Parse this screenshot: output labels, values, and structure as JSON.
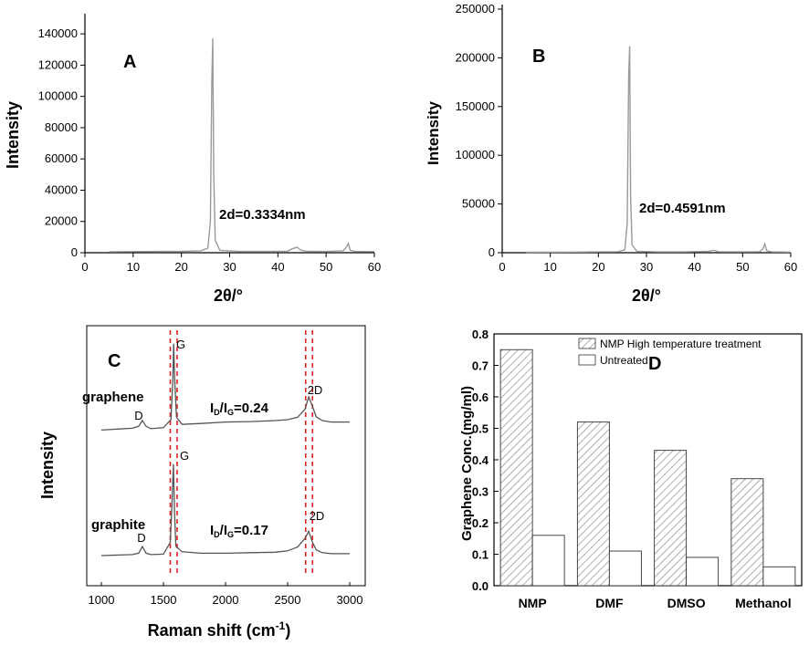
{
  "chart_data": [
    {
      "type": "line",
      "panel_label": "A",
      "xlabel": "2θ/°",
      "ylabel": "Intensity",
      "xlim": [
        0,
        60
      ],
      "ylim": [
        0,
        150000
      ],
      "x_ticks": [
        "0",
        "10",
        "20",
        "30",
        "40",
        "50",
        "60"
      ],
      "y_ticks": [
        "0",
        "20000",
        "40000",
        "60000",
        "80000",
        "100000",
        "120000",
        "140000"
      ],
      "annotation": "2d=0.3334nm",
      "series": [
        {
          "x": [
            5,
            10,
            15,
            20,
            24,
            25.5,
            26,
            26.3,
            26.5,
            26.7,
            27,
            28,
            32,
            38,
            42,
            43,
            44,
            44.6,
            45,
            46,
            50,
            53.5,
            54.2,
            54.6,
            55,
            56,
            60
          ],
          "y": [
            600,
            700,
            800,
            900,
            1200,
            3000,
            20000,
            110000,
            137000,
            50000,
            8000,
            1500,
            800,
            800,
            1000,
            2500,
            3500,
            2000,
            1500,
            900,
            800,
            1200,
            3500,
            6000,
            1500,
            800,
            700
          ]
        }
      ]
    },
    {
      "type": "line",
      "panel_label": "B",
      "xlabel": "2θ/°",
      "ylabel": "Intensity",
      "xlim": [
        0,
        60
      ],
      "ylim": [
        0,
        250000
      ],
      "x_ticks": [
        "0",
        "10",
        "20",
        "30",
        "40",
        "50",
        "60"
      ],
      "y_ticks": [
        "0",
        "50000",
        "100000",
        "150000",
        "200000",
        "250000"
      ],
      "annotation": "2d=0.4591nm",
      "series": [
        {
          "x": [
            5,
            10,
            15,
            20,
            24,
            25.5,
            26,
            26.3,
            26.5,
            26.7,
            27,
            28,
            32,
            38,
            43,
            44,
            45,
            50,
            53.5,
            54.2,
            54.6,
            55,
            56,
            60
          ],
          "y": [
            500,
            600,
            700,
            800,
            1000,
            3000,
            30000,
            180000,
            212000,
            60000,
            8000,
            1500,
            800,
            800,
            1500,
            2500,
            1000,
            800,
            1000,
            4000,
            9000,
            2000,
            800,
            700
          ]
        }
      ]
    },
    {
      "type": "line",
      "panel_label": "C",
      "xlabel": "Raman shift (cm-1)",
      "ylabel": "Intensity",
      "xlim": [
        800,
        3100
      ],
      "x_ticks": [
        "1000",
        "1500",
        "2000",
        "2500",
        "3000"
      ],
      "series": [
        {
          "name": "graphene",
          "ratio_label": "ID/IG=0.24",
          "x": [
            1000,
            1250,
            1300,
            1330,
            1360,
            1400,
            1500,
            1560,
            1575,
            1582,
            1590,
            1605,
            1650,
            1800,
            2000,
            2200,
            2400,
            2500,
            2580,
            2640,
            2670,
            2700,
            2730,
            2780,
            2850,
            3000
          ],
          "y": [
            0.28,
            0.32,
            0.36,
            0.48,
            0.36,
            0.31,
            0.33,
            0.5,
            1.3,
            2.1,
            1.4,
            0.55,
            0.4,
            0.42,
            0.45,
            0.46,
            0.48,
            0.5,
            0.55,
            0.72,
            0.98,
            0.78,
            0.56,
            0.48,
            0.45,
            0.45
          ]
        },
        {
          "name": "graphite",
          "ratio_label": "ID/IG=0.17",
          "x": [
            1000,
            1250,
            1300,
            1330,
            1360,
            1400,
            1500,
            1555,
            1570,
            1580,
            1590,
            1600,
            1650,
            1800,
            2000,
            2200,
            2400,
            2500,
            2580,
            2640,
            2670,
            2700,
            2730,
            2780,
            2850,
            3000
          ],
          "y": [
            0.02,
            0.04,
            0.07,
            0.21,
            0.07,
            0.04,
            0.05,
            0.3,
            1.2,
            1.95,
            0.9,
            0.22,
            0.1,
            0.07,
            0.07,
            0.08,
            0.09,
            0.12,
            0.2,
            0.38,
            0.53,
            0.3,
            0.14,
            0.08,
            0.06,
            0.06
          ]
        }
      ],
      "peak_labels": [
        "D",
        "G",
        "2D",
        "D",
        "G",
        "2D"
      ],
      "dashed_lines_x": [
        1555,
        1610,
        2645,
        2700
      ]
    },
    {
      "type": "bar",
      "panel_label": "D",
      "categories": [
        "NMP",
        "DMF",
        "DMSO",
        "Methanol"
      ],
      "ylabel": "Graphene Conc.(mg/ml)",
      "ylim": [
        0,
        0.8
      ],
      "y_ticks": [
        "0.0",
        "0.1",
        "0.2",
        "0.3",
        "0.4",
        "0.5",
        "0.6",
        "0.7",
        "0.8"
      ],
      "series": [
        {
          "name": "NMP High temperature treatment",
          "values": [
            0.75,
            0.52,
            0.43,
            0.34
          ]
        },
        {
          "name": "Untreated",
          "values": [
            0.16,
            0.11,
            0.09,
            0.06
          ]
        }
      ]
    }
  ]
}
